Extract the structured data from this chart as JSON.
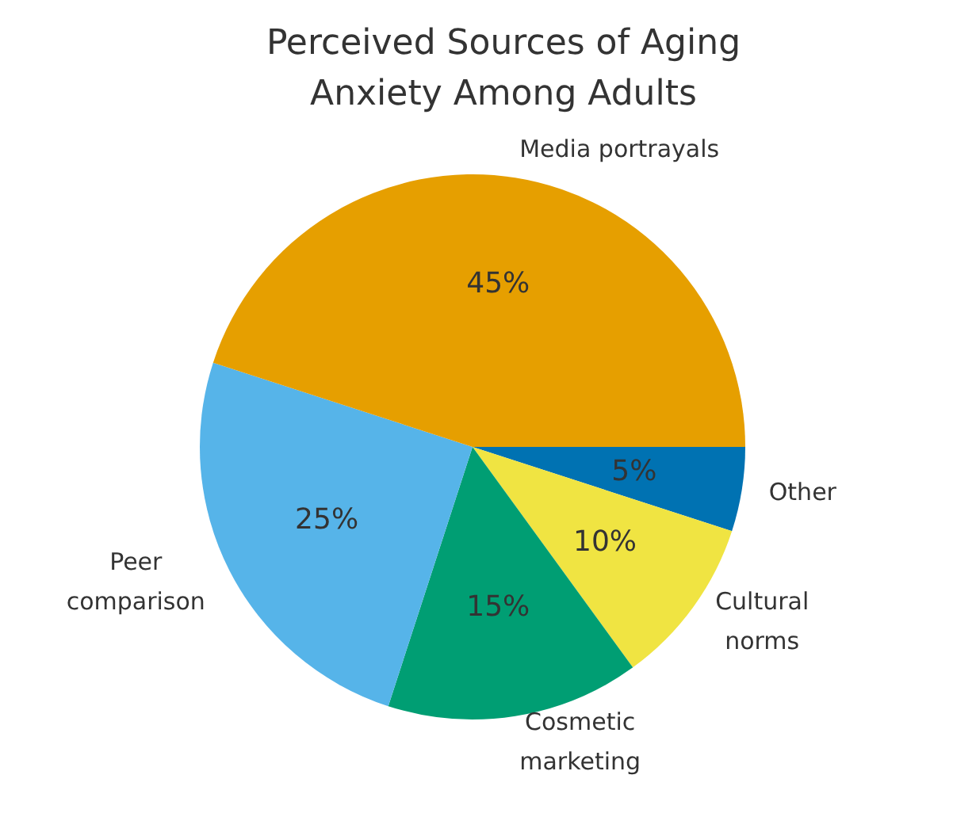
{
  "chart_data": {
    "type": "pie",
    "title": "Perceived Sources of Aging Anxiety Among Adults",
    "categories": [
      "Media portrayals",
      "Peer comparison",
      "Cosmetic marketing",
      "Cultural norms",
      "Other"
    ],
    "values": [
      45,
      25,
      15,
      10,
      5
    ],
    "colors": [
      "#e69f00",
      "#56b4e9",
      "#009e73",
      "#f0e442",
      "#0072b2"
    ],
    "value_labels": [
      "45%",
      "25%",
      "15%",
      "10%",
      "5%"
    ],
    "legend": false
  }
}
